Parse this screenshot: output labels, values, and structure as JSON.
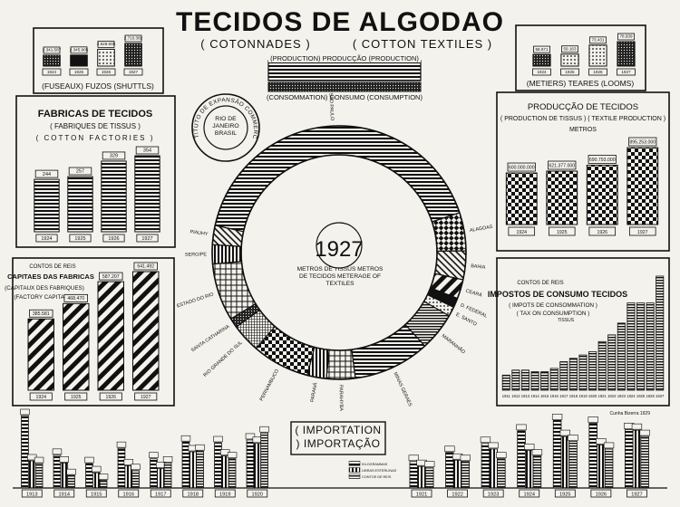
{
  "header": {
    "title": "TECIDOS DE ALGODAO",
    "subtitle_fr": "( COTONNADES )",
    "subtitle_en": "( COTTON TEXTILES )"
  },
  "legend_production": "(PRODUCTION) PRODUCÇÃO (PRODUCTION)",
  "legend_consumption": "(CONSOMMATION) CONSUMO (CONSUMPTION)",
  "seal": {
    "ring": "INSTITUTO DE EXPANSÃO COMMERCIAL",
    "center": "RIO DE JANEIRO BRASIL"
  },
  "credit": "Cunha Bizerra 1929",
  "colors": {
    "ink": "#111111",
    "paper": "#f4f2ec"
  },
  "chart_data": [
    {
      "id": "fusos",
      "type": "bar",
      "title": "(FUSEAUX) FUZOS (SHUTTLS)",
      "categories": [
        "1924",
        "1925",
        "1926",
        "1927"
      ],
      "labels": [
        "2.341.587",
        "2.345.905",
        "2.528.605",
        "2.710.382"
      ],
      "values": [
        2341587,
        2345905,
        2528605,
        2710382
      ]
    },
    {
      "id": "teares",
      "type": "bar",
      "title": "(METIERS) TEARES (LOOMS)",
      "categories": [
        "1924",
        "1925",
        "1926",
        "1927"
      ],
      "labels": [
        "58.671",
        "59.163",
        "73.431",
        "78.939"
      ],
      "values": [
        58671,
        59163,
        73431,
        78939
      ]
    },
    {
      "id": "fabricas",
      "type": "bar",
      "title": "FABRICAS DE TECIDOS",
      "subtitle": "( FABRIQUES DE TISSUS )",
      "subtitle2": "( COTTON FACTORIES )",
      "categories": [
        "1924",
        "1925",
        "1926",
        "1927"
      ],
      "labels": [
        "244",
        "257",
        "329",
        "354"
      ],
      "values": [
        244,
        257,
        329,
        354
      ]
    },
    {
      "id": "producao",
      "type": "bar",
      "title": "PRODUCÇÃO DE TECIDOS",
      "subtitle": "( PRODUCTION DE TISSUS ) ( TEXTILE PRODUCTION )",
      "unit": "METROS",
      "categories": [
        "1924",
        "1925",
        "1926",
        "1927"
      ],
      "labels": [
        "600.000.000",
        "621.377.000",
        "690.793.000",
        "895.253.000"
      ],
      "values": [
        600000000,
        621377000,
        690793000,
        895253000
      ]
    },
    {
      "id": "capitaes",
      "type": "bar",
      "unit": "CONTOS DE REIS",
      "title": "CAPITAES DAS FABRICAS",
      "subtitle": "(CAPITAUX DES FABRIQUES)",
      "subtitle2": "(FACTORY CAPITAL)",
      "categories": [
        "1924",
        "1925",
        "1926",
        "1927"
      ],
      "labels": [
        "385.581",
        "468.470",
        "587.207",
        "641.492"
      ],
      "values": [
        385581,
        468470,
        587207,
        641492
      ]
    },
    {
      "id": "impostos",
      "type": "bar",
      "unit": "CONTOS DE REIS",
      "title": "IMPOSTOS DE CONSUMO TECIDOS",
      "subtitle": "( IMPOTS DE CONSOMMATION )",
      "subtitle2": "( TAX ON CONSUMPTION )",
      "subtitle3": "TISSUS",
      "categories": [
        "1911",
        "1912",
        "1913",
        "1914",
        "1915",
        "1916",
        "1917",
        "1918",
        "1919",
        "1920",
        "1921",
        "1922",
        "1923",
        "1924",
        "1925",
        "1926",
        "1927"
      ],
      "values": [
        9,
        12,
        12,
        11,
        11,
        13,
        17,
        19,
        21,
        23,
        29,
        33,
        40,
        52,
        52,
        52,
        68
      ]
    },
    {
      "id": "consumo_1927",
      "type": "pie",
      "title": "1927",
      "unit_label": "METROS DE TISSUS METROS DE TECIDOS METERAGE OF TEXTILES",
      "categories": [
        "SÃO PAULO",
        "ALAGOAS",
        "BAHIA",
        "CEARÁ",
        "D. FEDERAL",
        "E. SANTO",
        "MARANHÃO",
        "MINAS GERAES",
        "PARAHYBA",
        "PARANÁ",
        "PERNAMBUCO",
        "RIO GRANDE DO SUL",
        "SANTA CATHARINA",
        "ESTADO DO RIO",
        "SERGIPE",
        "PIAUHY"
      ],
      "values": [
        34,
        4,
        3,
        2,
        1,
        1,
        4,
        8,
        3,
        2,
        6,
        3,
        1,
        6,
        2,
        2
      ]
    },
    {
      "id": "importacao",
      "type": "bar",
      "title": "( IMPORTATION ) IMPORTAÇÃO",
      "legend": [
        "KILOGRAMMAS",
        "LIBRAS ESTERLINAS",
        "CONTOS DE REIS"
      ],
      "categories": [
        "1913",
        "1914",
        "1915",
        "1916",
        "1917",
        "1918",
        "1919",
        "1920",
        "1921",
        "1922",
        "1923",
        "1924",
        "1925",
        "1926",
        "1927"
      ],
      "series": [
        {
          "name": "KILOGRAMMAS",
          "values": [
            10.4,
            4.7,
            3.5,
            5.7,
            4.2,
            6.6,
            6.5,
            6.9,
            3.8,
            5.1,
            6.4,
            8.2,
            9.7,
            9.3,
            8.4
          ]
        },
        {
          "name": "LIBRAS ESTERLINAS",
          "values": [
            3.9,
            3.6,
            2.2,
            3.2,
            2.8,
            5.2,
            4.6,
            6.4,
            3.1,
            4.0,
            5.6,
            5.4,
            7.4,
            6.2,
            8.3
          ]
        },
        {
          "name": "CONTOS DE REIS",
          "values": [
            3.5,
            1.8,
            1.1,
            2.5,
            3.6,
            5.3,
            4.2,
            7.9,
            2.9,
            3.8,
            4.2,
            4.6,
            6.7,
            5.6,
            7.4
          ]
        }
      ]
    }
  ]
}
